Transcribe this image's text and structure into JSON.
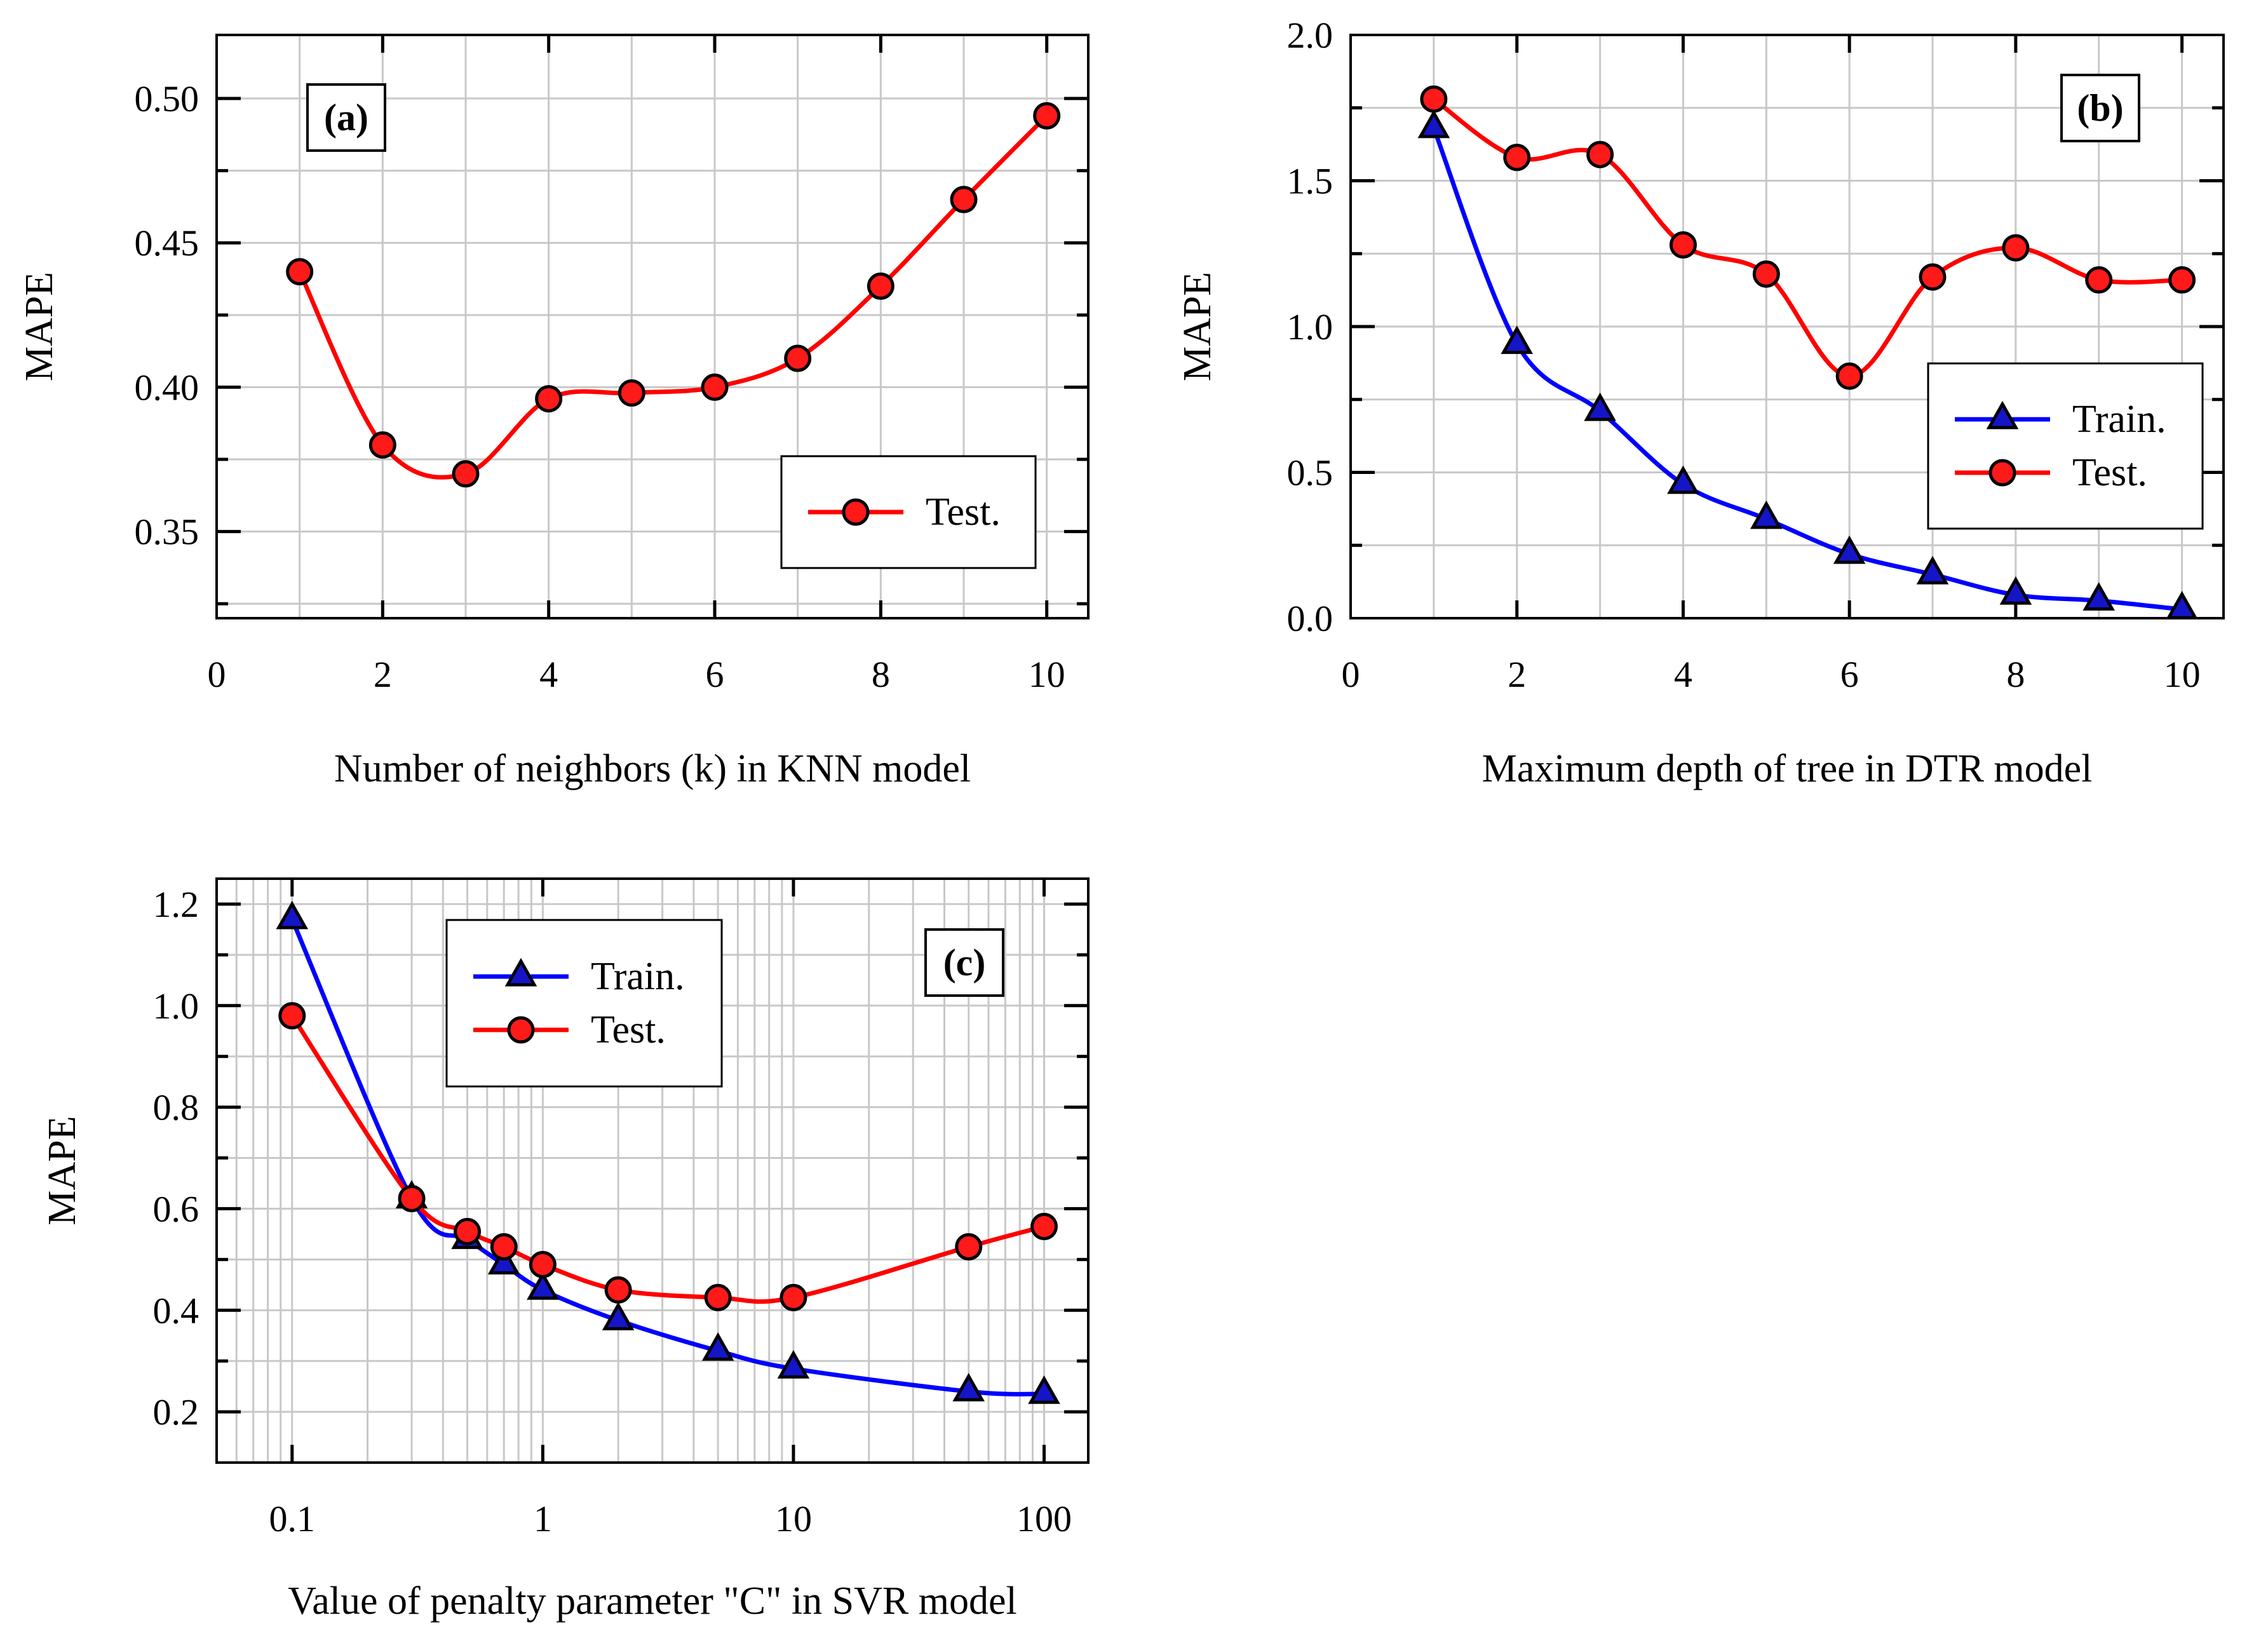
{
  "colors": {
    "train": "#0000ff",
    "test": "#ff0000",
    "train_marker": "#1515c8",
    "test_marker": "#ff1a1a",
    "grid": "#c8c8c8",
    "axes": "#000000"
  },
  "chart_data": [
    {
      "id": "a",
      "type": "line",
      "panel_label": "(a)",
      "title": "",
      "xlabel": "Number of neighbors (k) in KNN model",
      "ylabel": "MAPE",
      "xscale": "linear",
      "xlim": [
        0,
        10.5
      ],
      "ylim": [
        0.32,
        0.522
      ],
      "xticks": [
        0,
        2,
        4,
        6,
        8,
        10
      ],
      "xtick_labels": [
        "0",
        "2",
        "4",
        "6",
        "8",
        "10"
      ],
      "yticks": [
        0.35,
        0.4,
        0.45,
        0.5
      ],
      "ytick_labels": [
        "0.35",
        "0.40",
        "0.45",
        "0.50"
      ],
      "legend_position": "bottom-right",
      "series": [
        {
          "name": "Test.",
          "marker": "circle",
          "color_key": "test",
          "x": [
            1,
            2,
            3,
            4,
            5,
            6,
            7,
            8,
            9,
            10
          ],
          "y": [
            0.44,
            0.38,
            0.37,
            0.396,
            0.398,
            0.4,
            0.41,
            0.435,
            0.465,
            0.494
          ]
        }
      ]
    },
    {
      "id": "b",
      "type": "line",
      "panel_label": "(b)",
      "title": "",
      "xlabel": "Maximum depth of tree in DTR model",
      "ylabel": "MAPE",
      "xscale": "linear",
      "xlim": [
        0,
        10.5
      ],
      "ylim": [
        0,
        2.0
      ],
      "xticks": [
        0,
        2,
        4,
        6,
        8,
        10
      ],
      "xtick_labels": [
        "0",
        "2",
        "4",
        "6",
        "8",
        "10"
      ],
      "yticks": [
        0,
        0.5,
        1.0,
        1.5,
        2.0
      ],
      "ytick_labels": [
        "0.0",
        "0.5",
        "1.0",
        "1.5",
        "2.0"
      ],
      "legend_position": "middle-right",
      "series": [
        {
          "name": "Train.",
          "marker": "triangle",
          "color_key": "train",
          "x": [
            1,
            2,
            3,
            4,
            5,
            6,
            7,
            8,
            9,
            10
          ],
          "y": [
            1.68,
            0.94,
            0.71,
            0.46,
            0.34,
            0.22,
            0.15,
            0.08,
            0.06,
            0.03
          ]
        },
        {
          "name": "Test.",
          "marker": "circle",
          "color_key": "test",
          "x": [
            1,
            2,
            3,
            4,
            5,
            6,
            7,
            8,
            9,
            10
          ],
          "y": [
            1.78,
            1.58,
            1.59,
            1.28,
            1.18,
            0.83,
            1.17,
            1.27,
            1.16,
            1.16
          ]
        }
      ]
    },
    {
      "id": "c",
      "type": "line",
      "panel_label": "(c)",
      "title": "",
      "xlabel": "Value of penalty parameter \"C\" in SVR model",
      "ylabel": "MAPE",
      "xscale": "log",
      "xlim": [
        0.05,
        150
      ],
      "ylim": [
        0.1,
        1.25
      ],
      "xticks": [
        0.1,
        1,
        10,
        100
      ],
      "xtick_labels": [
        "0.1",
        "1",
        "10",
        "100"
      ],
      "yticks": [
        0.2,
        0.4,
        0.6,
        0.8,
        1.0,
        1.2
      ],
      "ytick_labels": [
        "0.2",
        "0.4",
        "0.6",
        "0.8",
        "1.0",
        "1.2"
      ],
      "legend_position": "top-left",
      "series": [
        {
          "name": "Train.",
          "marker": "triangle",
          "color_key": "train",
          "x": [
            0.1,
            0.3,
            0.5,
            0.7,
            1,
            2,
            5,
            10,
            50,
            100
          ],
          "y": [
            1.17,
            0.62,
            0.54,
            0.49,
            0.44,
            0.38,
            0.32,
            0.285,
            0.24,
            0.235
          ]
        },
        {
          "name": "Test.",
          "marker": "circle",
          "color_key": "test",
          "x": [
            0.1,
            0.3,
            0.5,
            0.7,
            1,
            2,
            5,
            10,
            50,
            100
          ],
          "y": [
            0.98,
            0.62,
            0.555,
            0.525,
            0.49,
            0.44,
            0.425,
            0.425,
            0.525,
            0.565
          ]
        }
      ]
    }
  ]
}
